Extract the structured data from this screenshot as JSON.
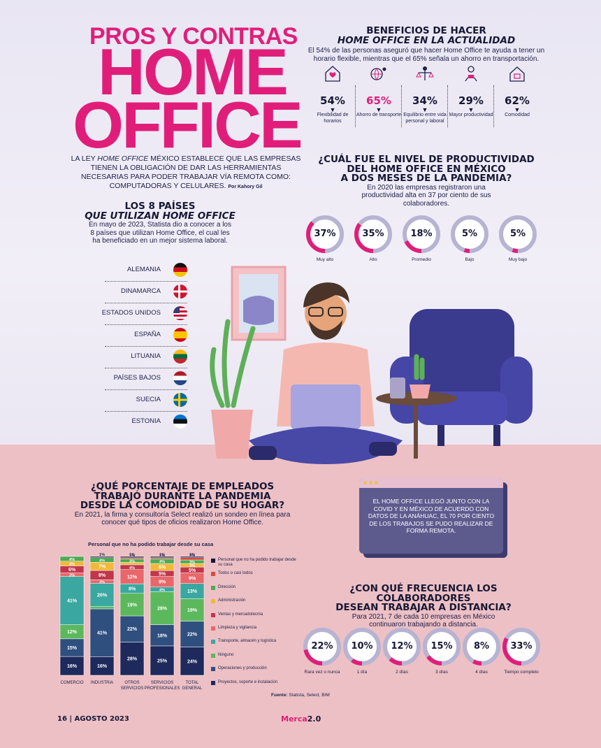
{
  "title": {
    "line1": "PROS Y CONTRAS",
    "line2": "HOME",
    "line3": "OFFICE"
  },
  "intro": {
    "text_a": "LA LEY ",
    "text_em": "HOME OFFICE",
    "text_b": " MÉXICO ESTABLECE QUE LAS EMPRESAS TIENEN LA OBLIGACIÓN DE DAR LAS HERRAMIENTAS NECESARIAS PARA PODER TRABAJAR VÍA REMOTA COMO: COMPUTADORAS Y CELULARES.",
    "byline": "Por Kahory Gil"
  },
  "benefits": {
    "title1": "BENEFICIOS DE HACER",
    "title2": "HOME OFFICE EN LA ACTUALIDAD",
    "desc": "El 54% de las personas aseguró que hacer Home Office te ayuda a tener un horario flexible, mientras que el 65% señala un ahorro en transportación.",
    "items": [
      {
        "pct": "54%",
        "label": "Flexibilidad de horarios",
        "icon": "house-heart-icon",
        "highlight": false
      },
      {
        "pct": "65%",
        "label": "Ahorro de transporte",
        "icon": "globe-person-icon",
        "highlight": true
      },
      {
        "pct": "34%",
        "label": "Equilibrio entre vida personal y laboral",
        "icon": "balance-person-icon",
        "highlight": false
      },
      {
        "pct": "29%",
        "label": "Mayor productividad",
        "icon": "worker-icon",
        "highlight": false
      },
      {
        "pct": "62%",
        "label": "Comodidad",
        "icon": "home-icon",
        "highlight": false
      }
    ]
  },
  "productivity": {
    "title1": "¿CUÁL FUE EL NIVEL DE PRODUCTIVIDAD",
    "title2": "DEL HOME OFFICE EN MÉXICO",
    "title3": "A DOS MESES DE LA PANDEMIA?",
    "desc": "En 2020 las empresas registraron una productividad alta en 37 por ciento de sus colaboradores.",
    "items": [
      {
        "value": 37,
        "label": "Muy alto"
      },
      {
        "value": 35,
        "label": "Alto"
      },
      {
        "value": 18,
        "label": "Promedio"
      },
      {
        "value": 5,
        "label": "Bajo"
      },
      {
        "value": 5,
        "label": "Muy bajo"
      }
    ]
  },
  "countries": {
    "title1": "LOS 8 PAÍSES",
    "title2": "QUE UTILIZAN HOME OFFICE",
    "desc": "En mayo de 2023, Statista dio a conocer a los 8 países que utilizan Home Office, el cual les ha beneficiado en un mejor sistema laboral.",
    "list": [
      "ALEMANIA",
      "DINAMARCA",
      "ESTADOS UNIDOS",
      "ESPAÑA",
      "LITUANIA",
      "PAÍSES BAJOS",
      "SUECIA",
      "ESTONIA"
    ]
  },
  "employees": {
    "title1": "¿QUÉ PORCENTAJE DE EMPLEADOS",
    "title2": "TRABAJÓ DURANTE LA PANDEMIA",
    "title3": "DESDE LA COMODIDAD DE SU HOGAR?",
    "desc": "En 2021, la firma y consultoría Select realizó un sondeo en línea para conocer qué tipos de oficios realizaron Home Office."
  },
  "popup": {
    "text": "EL HOME OFFICE LLEGÓ JUNTO CON LA COVID Y EN MÉXICO DE ACUERDO CON DATOS DE LA ANÁHUAC, EL 70 POR CIENTO DE LOS TRABAJOS SE PUDO REALIZAR DE FORMA REMOTA."
  },
  "frequency": {
    "title1": "¿CON QUÉ FRECUENCIA LOS COLABORADORES",
    "title2": "DESEAN TRABAJAR A DISTANCIA?",
    "desc": "Para 2021, 7 de cada 10 empresas en México continuaron trabajando a distancia.",
    "items": [
      {
        "value": 22,
        "label": "Rara vez o nunca"
      },
      {
        "value": 10,
        "label": "1 día"
      },
      {
        "value": 12,
        "label": "2 días"
      },
      {
        "value": 15,
        "label": "3 días"
      },
      {
        "value": 8,
        "label": "4 días"
      },
      {
        "value": 33,
        "label": "Tiempo completo"
      }
    ]
  },
  "chart_data": {
    "type": "bar",
    "stacked": true,
    "title": "Personal que no ha podido trabajar desde su casa",
    "categories": [
      "COMERCIO",
      "INDUSTRIA",
      "OTROS SERVICIOS",
      "SERVICIOS PROFESIONALES",
      "TOTAL GENERAL"
    ],
    "series": [
      {
        "name": "Proyectos, soporte e instalación",
        "color": "#1e2a5c",
        "values": [
          16,
          16,
          28,
          25,
          24
        ]
      },
      {
        "name": "Operaciones y producción",
        "color": "#2f4f7e",
        "values": [
          15,
          41,
          22,
          18,
          22
        ]
      },
      {
        "name": "Ninguno",
        "color": "#5cb85c",
        "values": [
          12,
          2,
          19,
          28,
          19
        ]
      },
      {
        "name": "Transporte, almacén y logística",
        "color": "#3aa7a0",
        "values": [
          41,
          20,
          8,
          4,
          13
        ]
      },
      {
        "name": "Limpieza y vigilancia",
        "color": "#e8676a",
        "values": [
          3,
          3,
          12,
          9,
          9
        ]
      },
      {
        "name": "Ventas y mercadotecnia",
        "color": "#c0364a",
        "values": [
          6,
          8,
          4,
          5,
          5
        ]
      },
      {
        "name": "Administración",
        "color": "#f0b93a",
        "values": [
          4,
          7,
          2,
          6,
          3
        ]
      },
      {
        "name": "Dirección",
        "color": "#4caa54",
        "values": [
          4,
          4,
          3,
          4,
          3
        ]
      },
      {
        "name": "Todos o casi todos",
        "color": "#d94b3c",
        "values": [
          0,
          0,
          1,
          1,
          2
        ]
      },
      {
        "name": "Personal que no ha podido trabajar desde su casa",
        "color": "#16163a",
        "values": [
          0,
          1,
          1,
          1,
          1
        ]
      }
    ],
    "legend_position": "right"
  },
  "source": {
    "label": "Fuente:",
    "text": " Statista, Select, BIM"
  },
  "footer": {
    "page": "16 | AGOSTO 2023",
    "brand_a": "Merca",
    "brand_b": "2.0"
  }
}
